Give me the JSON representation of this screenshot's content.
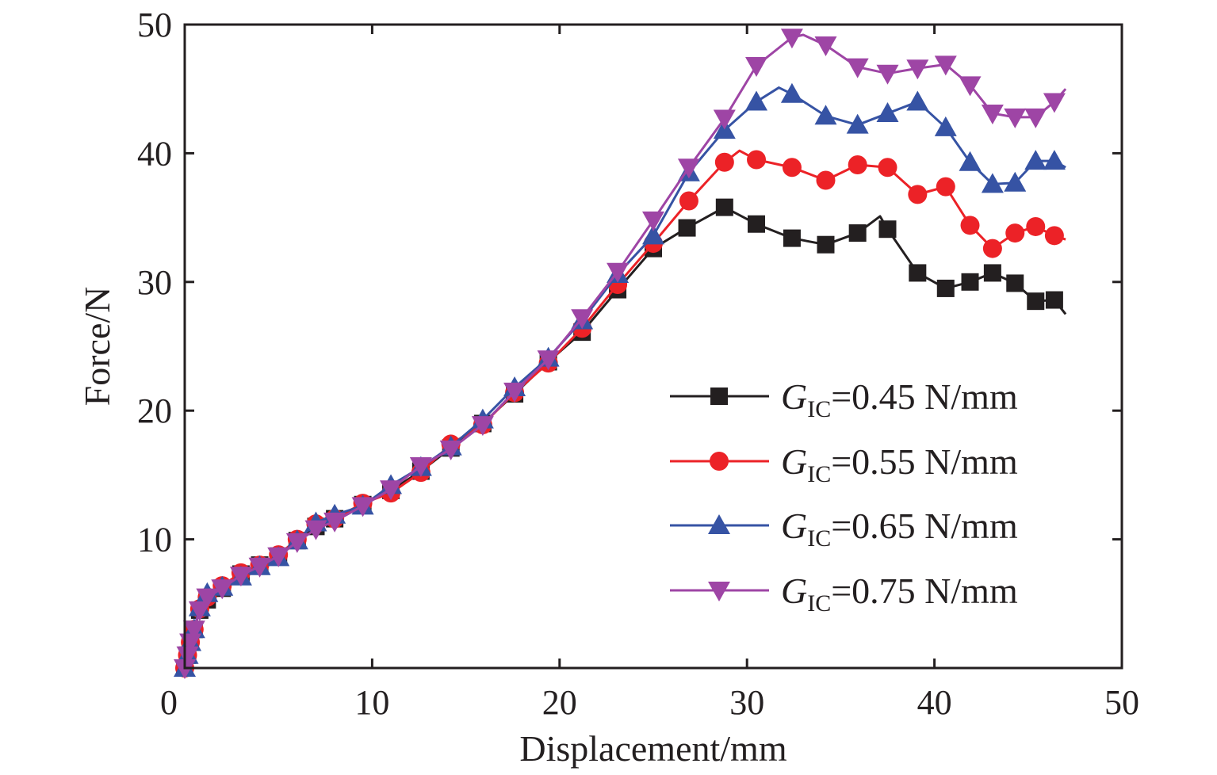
{
  "chart_data": {
    "type": "line",
    "title": "",
    "xlabel": "Displacement/mm",
    "ylabel": "Force/N",
    "xlim": [
      0,
      50
    ],
    "ylim": [
      0,
      50
    ],
    "xticks": [
      0,
      10,
      20,
      30,
      40,
      50
    ],
    "yticks": [
      0,
      10,
      20,
      30,
      40,
      50
    ],
    "grid": false,
    "legend_position": "center-right",
    "series": [
      {
        "name": "G_IC=0.45 N/mm",
        "legend": {
          "symbol": "G",
          "sub": "IC",
          "rest": "=0.45 N/mm"
        },
        "color": "#231f20",
        "marker": "square",
        "x": [
          0,
          0.15,
          0.3,
          0.5,
          0.8,
          1.2,
          2,
          3,
          4,
          5,
          6,
          7,
          8,
          9.5,
          11,
          12.6,
          14.2,
          15.9,
          17.6,
          19.4,
          21.2,
          23.1,
          25,
          26.8,
          28.8,
          30.5,
          32.4,
          34.2,
          35.9,
          37.1,
          37.5,
          39.1,
          40.6,
          41.9,
          43.1,
          44.3,
          45.4,
          46.4,
          47
        ],
        "y": [
          0,
          1,
          2,
          3,
          4.5,
          5.3,
          6.2,
          7.3,
          8,
          8.7,
          9.9,
          11,
          11.6,
          12.7,
          13.8,
          15.3,
          17.1,
          19,
          21.3,
          23.8,
          26.1,
          29.4,
          32.6,
          34.2,
          35.8,
          34.5,
          33.4,
          32.9,
          33.8,
          35.1,
          34.1,
          30.7,
          29.5,
          30.0,
          30.7,
          29.9,
          28.5,
          28.6,
          27.5
        ],
        "markers_x": [
          0,
          0.15,
          0.3,
          0.5,
          0.8,
          1.2,
          2,
          3,
          4,
          5,
          6,
          7,
          8,
          9.5,
          11,
          12.6,
          14.2,
          15.9,
          17.6,
          19.4,
          21.2,
          23.1,
          25,
          26.8,
          28.8,
          30.5,
          32.4,
          34.2,
          35.9,
          37.5,
          39.1,
          40.6,
          41.9,
          43.1,
          44.3,
          45.4,
          46.4
        ]
      },
      {
        "name": "G_IC=0.55 N/mm",
        "legend": {
          "symbol": "G",
          "sub": "IC",
          "rest": "=0.55 N/mm"
        },
        "color": "#ec2227",
        "marker": "circle",
        "x": [
          0,
          0.15,
          0.3,
          0.5,
          0.8,
          1.2,
          2,
          3,
          4,
          5,
          6,
          7,
          8,
          9.5,
          11,
          12.6,
          14.2,
          15.9,
          17.6,
          19.4,
          21.2,
          23.1,
          25,
          26.9,
          28.8,
          29.6,
          30.5,
          32.4,
          34.2,
          35.9,
          37.5,
          39.1,
          40.6,
          41.9,
          43.1,
          44.3,
          45.4,
          46.4,
          47
        ],
        "y": [
          0,
          1,
          2,
          3,
          4.6,
          5.5,
          6.4,
          7.4,
          8,
          8.8,
          10,
          11.2,
          11.6,
          12.8,
          13.6,
          15.2,
          17.4,
          18.9,
          21.4,
          23.7,
          26.4,
          29.8,
          33.0,
          36.3,
          39.3,
          40.2,
          39.5,
          38.9,
          37.9,
          39.1,
          38.9,
          36.8,
          37.4,
          34.4,
          32.6,
          33.8,
          34.3,
          33.6,
          33.3
        ],
        "markers_x": [
          0,
          0.15,
          0.3,
          0.5,
          0.8,
          1.2,
          2,
          3,
          4,
          5,
          6,
          7,
          8,
          9.5,
          11,
          12.6,
          14.2,
          15.9,
          17.6,
          19.4,
          21.2,
          23.1,
          25,
          26.9,
          28.8,
          30.5,
          32.4,
          34.2,
          35.9,
          37.5,
          39.1,
          40.6,
          41.9,
          43.1,
          44.3,
          45.4,
          46.4
        ]
      },
      {
        "name": "G_IC=0.65 N/mm",
        "legend": {
          "symbol": "G",
          "sub": "IC",
          "rest": "=0.65 N/mm"
        },
        "color": "#3653a4",
        "marker": "triangle-up",
        "x": [
          0,
          0.15,
          0.3,
          0.5,
          0.8,
          1.2,
          2,
          3,
          4,
          5,
          6,
          7,
          8,
          9.5,
          11,
          12.6,
          14.2,
          15.9,
          17.6,
          19.4,
          21.2,
          23.1,
          25,
          26.9,
          28.8,
          30.5,
          31.7,
          32.4,
          34.2,
          35.9,
          37.5,
          39.1,
          40.6,
          41.9,
          43.1,
          44.3,
          45.4,
          46.4,
          47
        ],
        "y": [
          0,
          1,
          2,
          3,
          4.7,
          5.8,
          6.3,
          7.1,
          7.9,
          8.6,
          9.9,
          11.3,
          11.9,
          12.6,
          14.2,
          15.6,
          17.2,
          19.3,
          21.8,
          24.1,
          27.0,
          30.6,
          33.6,
          38.5,
          41.8,
          44.0,
          45.1,
          44.6,
          42.9,
          42.2,
          43.1,
          44.0,
          42.0,
          39.3,
          37.6,
          37.7,
          39.4,
          39.4,
          38.9
        ],
        "markers_x": [
          0,
          0.15,
          0.3,
          0.5,
          0.8,
          1.2,
          2,
          3,
          4,
          5,
          6,
          7,
          8,
          9.5,
          11,
          12.6,
          14.2,
          15.9,
          17.6,
          19.4,
          21.2,
          23.1,
          25,
          26.9,
          28.8,
          30.5,
          32.4,
          34.2,
          35.9,
          37.5,
          39.1,
          40.6,
          41.9,
          43.1,
          44.3,
          45.4,
          46.4
        ]
      },
      {
        "name": "G_IC=0.75 N/mm",
        "legend": {
          "symbol": "G",
          "sub": "IC",
          "rest": "=0.75 N/mm"
        },
        "color": "#9e45a5",
        "marker": "triangle-down",
        "x": [
          0,
          0.15,
          0.3,
          0.5,
          0.8,
          1.2,
          2,
          3,
          4,
          5,
          6,
          7,
          8,
          9.5,
          11,
          12.6,
          14.2,
          15.9,
          17.6,
          19.4,
          21.2,
          23.1,
          25,
          26.9,
          28.8,
          30.5,
          32.4,
          33.0,
          34.2,
          35.9,
          37.5,
          39.1,
          40.6,
          41.9,
          43.1,
          44.3,
          45.4,
          46.4,
          47
        ],
        "y": [
          0,
          1,
          2,
          3,
          4.5,
          5.5,
          6.2,
          7.2,
          7.9,
          8.7,
          9.8,
          10.8,
          11.4,
          12.6,
          13.9,
          15.7,
          17.0,
          18.9,
          21.5,
          24.0,
          27.2,
          30.8,
          34.8,
          38.9,
          42.7,
          46.8,
          49.0,
          49.2,
          48.4,
          46.7,
          46.2,
          46.6,
          46.9,
          45.3,
          43.1,
          42.8,
          42.8,
          44.0,
          45.0
        ],
        "markers_x": [
          0,
          0.15,
          0.3,
          0.5,
          0.8,
          1.2,
          2,
          3,
          4,
          5,
          6,
          7,
          8,
          9.5,
          11,
          12.6,
          14.2,
          15.9,
          17.6,
          19.4,
          21.2,
          23.1,
          25,
          26.9,
          28.8,
          30.5,
          32.4,
          34.2,
          35.9,
          37.5,
          39.1,
          40.6,
          41.9,
          43.1,
          44.3,
          45.4,
          46.4
        ]
      }
    ]
  }
}
